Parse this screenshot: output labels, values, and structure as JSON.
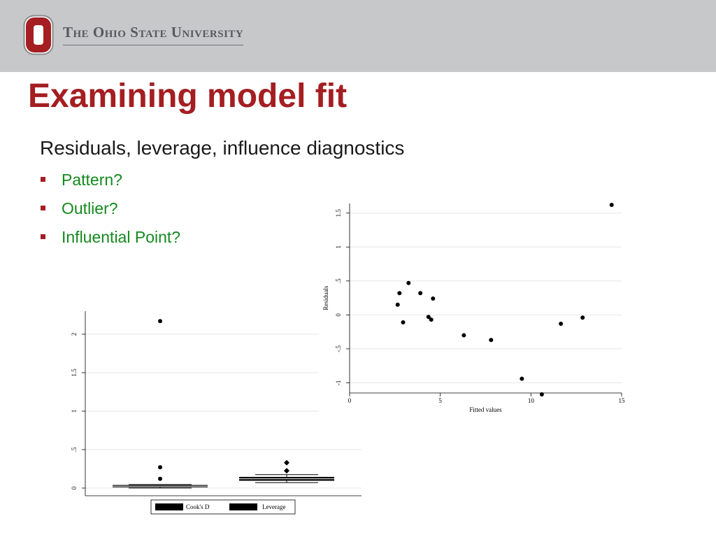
{
  "header": {
    "university_name": "The Ohio State University",
    "logo_icon": "block-o-logo",
    "brand_color": "#a41e22"
  },
  "slide": {
    "title": "Examining model fit",
    "subtitle": "Residuals, leverage, influence diagnostics",
    "bullets": [
      "Pattern?",
      "Outlier?",
      "Influential Point?"
    ],
    "bullet_color": "#14891e"
  },
  "chart_data": [
    {
      "type": "scatter",
      "title": "",
      "xlabel": "Fitted values",
      "ylabel": "Residuals",
      "xlim": [
        0,
        15
      ],
      "ylim": [
        -1.15,
        1.6
      ],
      "xticks": [
        0,
        5,
        10,
        15
      ],
      "yticks": [
        -1,
        -0.5,
        0,
        0.5,
        1,
        1.5
      ],
      "xtick_labels": [
        "0",
        "5",
        "10",
        "15"
      ],
      "ytick_labels": [
        "-1",
        "-.5",
        "0",
        ".5",
        "1",
        "1.5"
      ],
      "grid": "horizontal",
      "points": [
        {
          "x": 2.65,
          "y": 0.15
        },
        {
          "x": 2.75,
          "y": 0.32
        },
        {
          "x": 2.95,
          "y": -0.11
        },
        {
          "x": 3.25,
          "y": 0.47
        },
        {
          "x": 3.9,
          "y": 0.32
        },
        {
          "x": 4.35,
          "y": -0.03
        },
        {
          "x": 4.5,
          "y": -0.07
        },
        {
          "x": 4.6,
          "y": 0.24
        },
        {
          "x": 6.3,
          "y": -0.3
        },
        {
          "x": 7.8,
          "y": -0.37
        },
        {
          "x": 9.5,
          "y": -0.94
        },
        {
          "x": 10.6,
          "y": -1.17
        },
        {
          "x": 11.65,
          "y": -0.13
        },
        {
          "x": 12.85,
          "y": -0.04
        },
        {
          "x": 14.45,
          "y": 1.62
        }
      ]
    },
    {
      "type": "box",
      "title": "",
      "xlabel": "",
      "ylabel": "",
      "ylim": [
        -0.1,
        2.3
      ],
      "yticks": [
        0,
        0.5,
        1,
        1.5,
        2
      ],
      "ytick_labels": [
        "0",
        ".5",
        "1",
        "1.5",
        "2"
      ],
      "grid": "horizontal",
      "legend_position": "bottom",
      "series": [
        {
          "name": "Cook's D",
          "q1": 0.01,
          "median": 0.025,
          "q3": 0.04,
          "whisker_low": 0.0,
          "whisker_high": 0.045,
          "outliers": [
            0.12,
            0.27,
            2.17
          ],
          "marker": "circle"
        },
        {
          "name": "Leverage",
          "q1": 0.095,
          "median": 0.12,
          "q3": 0.145,
          "whisker_low": 0.07,
          "whisker_high": 0.175,
          "outliers": [
            0.225,
            0.33
          ],
          "marker": "diamond"
        }
      ]
    }
  ]
}
